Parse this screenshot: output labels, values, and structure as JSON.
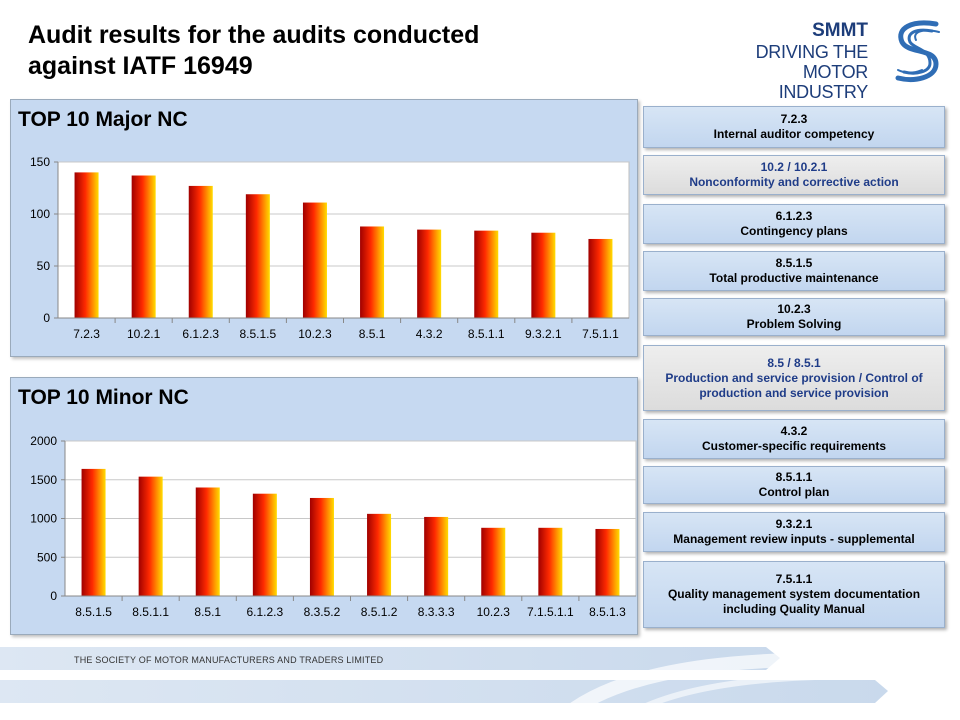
{
  "title": {
    "line1": "Audit results for the audits conducted",
    "line2": "against IATF 16949"
  },
  "logo": {
    "line1": "SMMT",
    "line2": "DRIVING THE",
    "line3": "MOTOR INDUSTRY"
  },
  "chart_data": [
    {
      "type": "bar",
      "title": "TOP 10 Major NC",
      "categories": [
        "7.2.3",
        "10.2.1",
        "6.1.2.3",
        "8.5.1.5",
        "10.2.3",
        "8.5.1",
        "4.3.2",
        "8.5.1.1",
        "9.3.2.1",
        "7.5.1.1"
      ],
      "values": [
        140,
        137,
        127,
        119,
        111,
        88,
        85,
        84,
        82,
        76
      ],
      "ylim": [
        0,
        150
      ],
      "yticks": [
        "0",
        "50",
        "100",
        "150"
      ],
      "grid": true,
      "xlabel": "",
      "ylabel": ""
    },
    {
      "type": "bar",
      "title": "TOP 10 Minor NC",
      "categories": [
        "8.5.1.5",
        "8.5.1.1",
        "8.5.1",
        "6.1.2.3",
        "8.3.5.2",
        "8.5.1.2",
        "8.3.3.3",
        "10.2.3",
        "7.1.5.1.1",
        "8.5.1.3"
      ],
      "values": [
        1640,
        1540,
        1400,
        1320,
        1265,
        1060,
        1020,
        880,
        880,
        865
      ],
      "ylim": [
        0,
        2000
      ],
      "yticks": [
        "0",
        "500",
        "1000",
        "1500",
        "2000"
      ],
      "grid": true,
      "xlabel": "",
      "ylabel": ""
    }
  ],
  "nc_boxes": [
    {
      "code": "7.2.3",
      "desc": "Internal auditor competency"
    },
    {
      "code": "10.2 / 10.2.1",
      "desc": "Nonconformity and corrective action"
    },
    {
      "code": "6.1.2.3",
      "desc": "Contingency plans"
    },
    {
      "code": "8.5.1.5",
      "desc": "Total productive maintenance"
    },
    {
      "code": "10.2.3",
      "desc": "Problem Solving"
    },
    {
      "code": "8.5 / 8.5.1",
      "desc": "Production and service provision / Control of production and service provision"
    },
    {
      "code": "4.3.2",
      "desc": "Customer-specific requirements"
    },
    {
      "code": "8.5.1.1",
      "desc": "Control plan"
    },
    {
      "code": "9.3.2.1",
      "desc": "Management review inputs - supplemental"
    },
    {
      "code": "7.5.1.1",
      "desc": "Quality management system documentation including Quality Manual"
    }
  ],
  "footer": {
    "text": "THE SOCIETY OF MOTOR MANUFACTURERS AND TRADERS LIMITED"
  },
  "colors": {
    "panel_bg": "#c6d9f1",
    "bar_dark": "#a00000",
    "bar_mid": "#ff2a00",
    "bar_light": "#ffdd00",
    "logo_blue": "#1d3d7a",
    "highlight_text": "#1f3c88"
  }
}
